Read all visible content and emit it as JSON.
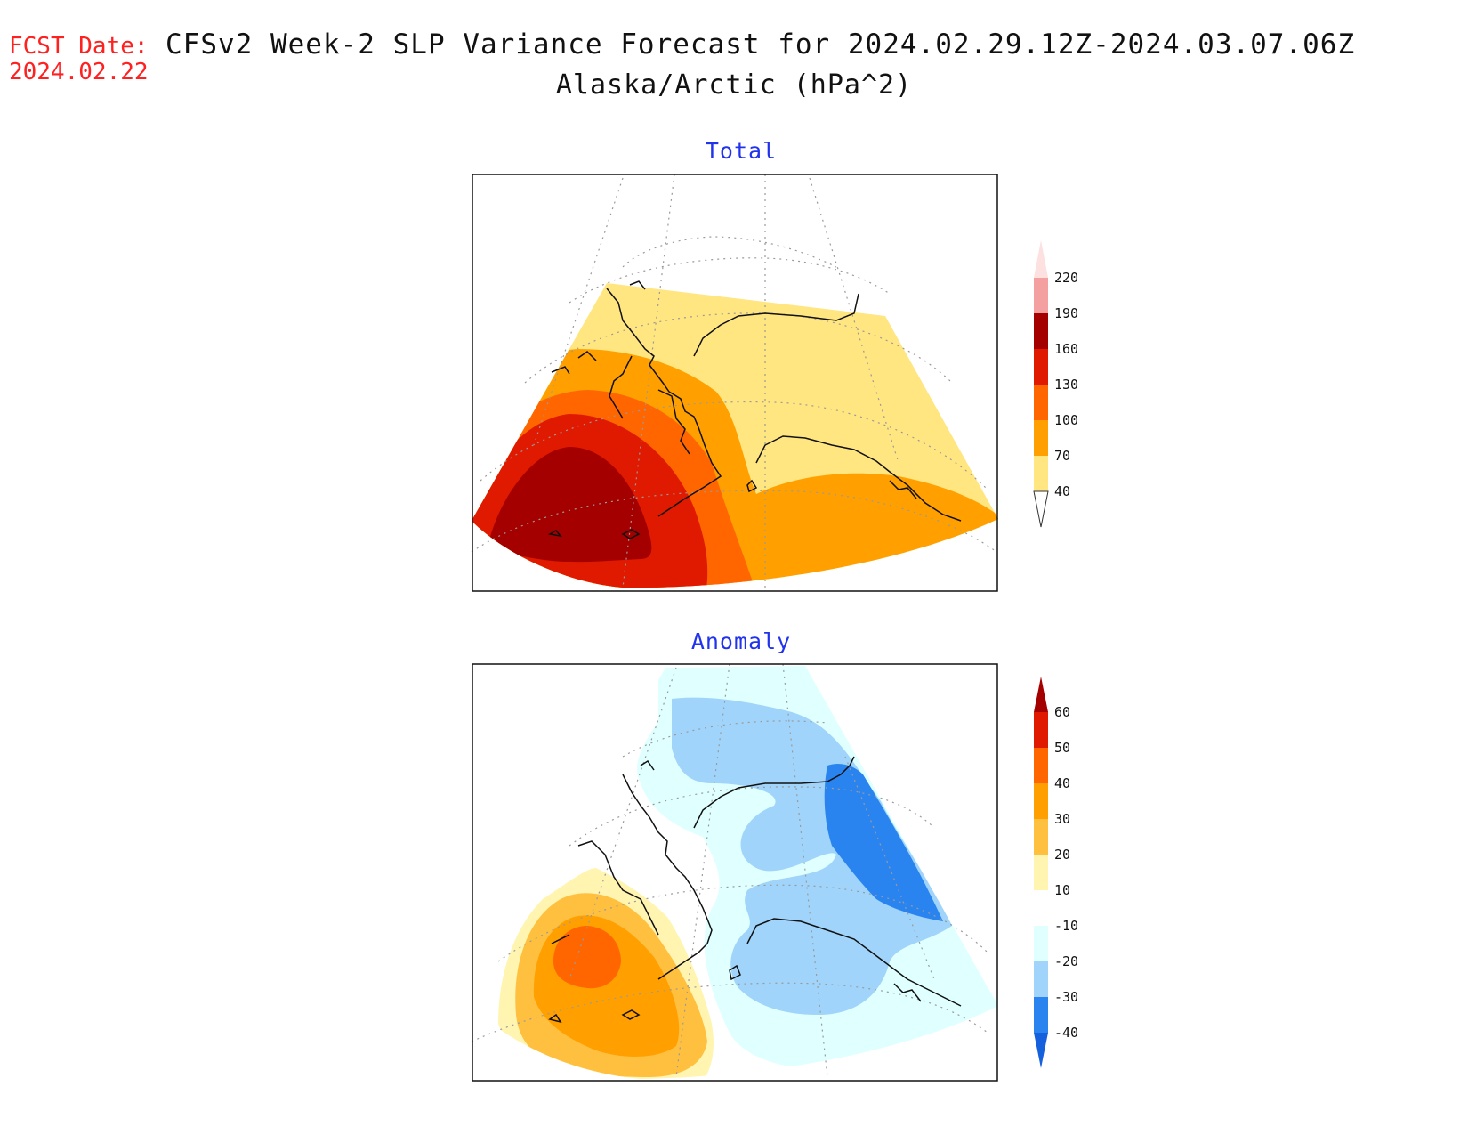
{
  "header": {
    "fcst_label": "FCST Date:",
    "fcst_date": "2024.02.22",
    "title": "CFSv2 Week-2 SLP Variance Forecast for 2024.02.29.12Z-2024.03.07.06Z",
    "subtitle": "Alaska/Arctic (hPa^2)"
  },
  "panels": [
    {
      "title": "Total",
      "colorbar": {
        "labels": [
          "220",
          "190",
          "160",
          "130",
          "100",
          "70",
          "40"
        ],
        "colors": [
          "#fde0e0",
          "#f5a0a0",
          "#a50000",
          "#e01a00",
          "#ff6600",
          "#ffa000",
          "#ffe680"
        ]
      }
    },
    {
      "title": "Anomaly",
      "colorbar": {
        "labels": [
          "60",
          "50",
          "40",
          "30",
          "20",
          "10",
          "-10",
          "-20",
          "-30",
          "-40"
        ],
        "colors": [
          "#a50000",
          "#e01a00",
          "#ff6600",
          "#ffa000",
          "#ffc040",
          "#fff5b0",
          "#ffffff",
          "#e0ffff",
          "#a0d4fa",
          "#2a84f0",
          "#1560dd"
        ]
      }
    }
  ]
}
